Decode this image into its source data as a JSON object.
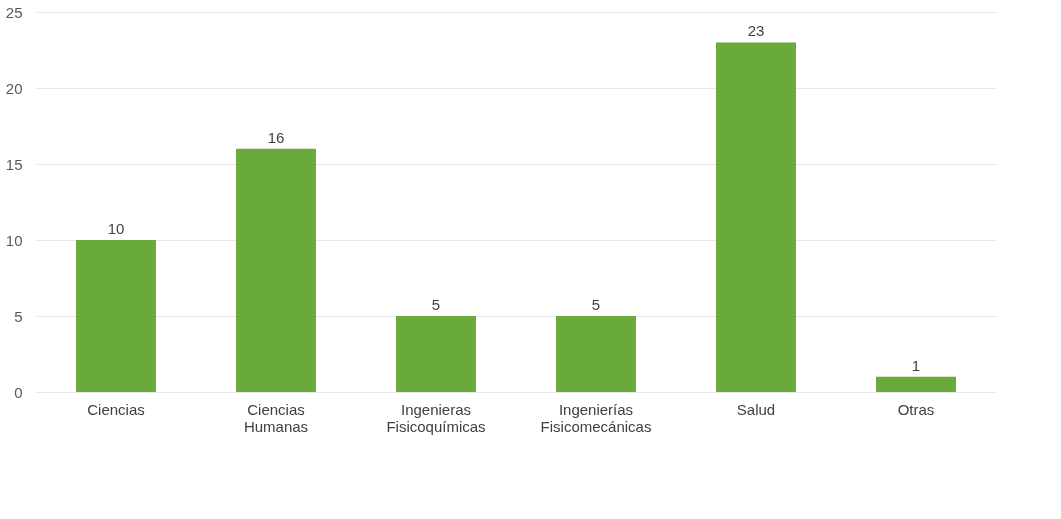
{
  "chart_data": {
    "type": "bar",
    "categories": [
      "Ciencias",
      "Ciencias Humanas",
      "Ingenieras Fisicoquímicas",
      "Ingenierías Fisicomecánicas",
      "Salud",
      "Otras"
    ],
    "values": [
      10,
      16,
      5,
      5,
      23,
      1
    ],
    "color": "#6aaa3a",
    "ylim": [
      0,
      25
    ],
    "yticks": [
      0,
      5,
      10,
      15,
      20,
      25
    ],
    "grid": "y",
    "data_labels": true
  }
}
